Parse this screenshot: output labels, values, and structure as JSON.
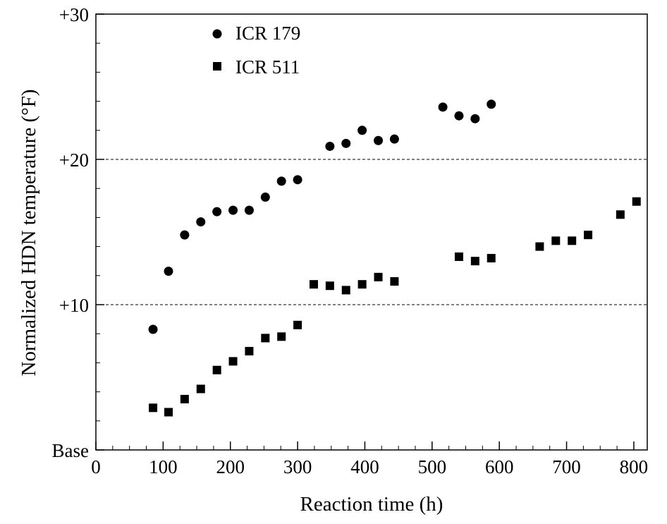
{
  "chart_data": {
    "type": "scatter",
    "xlabel": "Reaction time (h)",
    "ylabel": "Normalized HDN temperature (°F)",
    "xlim": [
      0,
      820
    ],
    "ylim": [
      0,
      30
    ],
    "x_ticks": [
      {
        "value": 0,
        "label": "0"
      },
      {
        "value": 100,
        "label": "100"
      },
      {
        "value": 200,
        "label": "200"
      },
      {
        "value": 300,
        "label": "300"
      },
      {
        "value": 400,
        "label": "400"
      },
      {
        "value": 500,
        "label": "500"
      },
      {
        "value": 600,
        "label": "600"
      },
      {
        "value": 700,
        "label": "700"
      },
      {
        "value": 800,
        "label": "800"
      }
    ],
    "y_ticks": [
      {
        "value": 0,
        "label": "Base"
      },
      {
        "value": 10,
        "label": "+10"
      },
      {
        "value": 20,
        "label": "+20"
      },
      {
        "value": 30,
        "label": "+30"
      }
    ],
    "grid": {
      "y_dashed_at": [
        10,
        20
      ]
    },
    "legend": "top-left",
    "series": [
      {
        "name": "ICR 179",
        "marker": "circle",
        "color": "#000000",
        "points": [
          [
            85,
            8.3
          ],
          [
            108,
            12.3
          ],
          [
            132,
            14.8
          ],
          [
            156,
            15.7
          ],
          [
            180,
            16.4
          ],
          [
            204,
            16.5
          ],
          [
            228,
            16.5
          ],
          [
            252,
            17.4
          ],
          [
            276,
            18.5
          ],
          [
            300,
            18.6
          ],
          [
            348,
            20.9
          ],
          [
            372,
            21.1
          ],
          [
            396,
            22.0
          ],
          [
            420,
            21.3
          ],
          [
            444,
            21.4
          ],
          [
            516,
            23.6
          ],
          [
            540,
            23.0
          ],
          [
            564,
            22.8
          ],
          [
            588,
            23.8
          ]
        ]
      },
      {
        "name": "ICR 511",
        "marker": "square",
        "color": "#000000",
        "points": [
          [
            85,
            2.9
          ],
          [
            108,
            2.6
          ],
          [
            132,
            3.5
          ],
          [
            156,
            4.2
          ],
          [
            180,
            5.5
          ],
          [
            204,
            6.1
          ],
          [
            228,
            6.8
          ],
          [
            252,
            7.7
          ],
          [
            276,
            7.8
          ],
          [
            300,
            8.6
          ],
          [
            324,
            11.4
          ],
          [
            348,
            11.3
          ],
          [
            372,
            11.0
          ],
          [
            396,
            11.4
          ],
          [
            420,
            11.9
          ],
          [
            444,
            11.6
          ],
          [
            540,
            13.3
          ],
          [
            564,
            13.0
          ],
          [
            588,
            13.2
          ],
          [
            660,
            14.0
          ],
          [
            684,
            14.4
          ],
          [
            708,
            14.4
          ],
          [
            732,
            14.8
          ],
          [
            780,
            16.2
          ],
          [
            804,
            17.1
          ]
        ]
      }
    ]
  }
}
